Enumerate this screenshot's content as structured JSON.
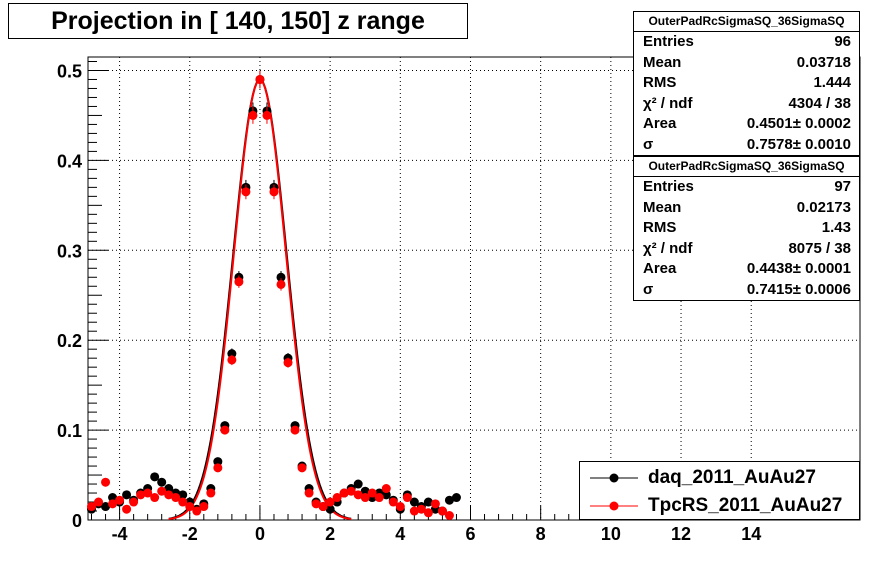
{
  "title": "Projection in [ 140, 150] z range",
  "stats_boxes": [
    {
      "header": "OuterPadRcSigmaSQ_36SigmaSQ",
      "rows": [
        {
          "label": "Entries",
          "value": "96"
        },
        {
          "label": "Mean",
          "value": "0.03718"
        },
        {
          "label": "RMS",
          "value": "1.444"
        },
        {
          "label": "χ² / ndf",
          "value": "4304 / 38"
        },
        {
          "label": "Area",
          "value": "0.4501± 0.0002"
        },
        {
          "label": "σ",
          "value": "0.7578± 0.0010"
        }
      ]
    },
    {
      "header": "OuterPadRcSigmaSQ_36SigmaSQ",
      "rows": [
        {
          "label": "Entries",
          "value": "97"
        },
        {
          "label": "Mean",
          "value": "0.02173"
        },
        {
          "label": "RMS",
          "value": "1.43"
        },
        {
          "label": "χ² / ndf",
          "value": "8075 / 38"
        },
        {
          "label": "Area",
          "value": "0.4438± 0.0001"
        },
        {
          "label": "σ",
          "value": "0.7415± 0.0006"
        }
      ]
    }
  ],
  "legend": [
    {
      "label": "daq_2011_AuAu27",
      "color": "#000000"
    },
    {
      "label": "TpcRS_2011_AuAu27",
      "color": "#ff0000"
    }
  ],
  "chart_data": {
    "type": "scatter",
    "xlim": [
      -4.9,
      17.1
    ],
    "ylim": [
      0,
      0.515
    ],
    "x_ticks": [
      -4,
      -2,
      0,
      2,
      4,
      6,
      8,
      10,
      12,
      14
    ],
    "y_ticks": [
      0,
      0.1,
      0.2,
      0.3,
      0.4,
      0.5
    ],
    "grid": true,
    "legend_position": "bottom-right",
    "series": [
      {
        "name": "daq_2011_AuAu27",
        "color": "#000000",
        "fit_sigma": 0.7578,
        "points": [
          [
            -4.8,
            0.012
          ],
          [
            -4.6,
            0.018
          ],
          [
            -4.4,
            0.015
          ],
          [
            -4.2,
            0.025
          ],
          [
            -4.0,
            0.02
          ],
          [
            -3.8,
            0.028
          ],
          [
            -3.6,
            0.022
          ],
          [
            -3.4,
            0.03
          ],
          [
            -3.2,
            0.035
          ],
          [
            -3.0,
            0.048
          ],
          [
            -2.8,
            0.042
          ],
          [
            -2.6,
            0.035
          ],
          [
            -2.4,
            0.03
          ],
          [
            -2.2,
            0.028
          ],
          [
            -2.0,
            0.02
          ],
          [
            -1.8,
            0.012
          ],
          [
            -1.6,
            0.018
          ],
          [
            -1.4,
            0.035
          ],
          [
            -1.2,
            0.065
          ],
          [
            -1.0,
            0.105
          ],
          [
            -0.8,
            0.185
          ],
          [
            -0.6,
            0.27
          ],
          [
            -0.4,
            0.37
          ],
          [
            -0.2,
            0.455
          ],
          [
            0.0,
            0.49
          ],
          [
            0.2,
            0.455
          ],
          [
            0.4,
            0.37
          ],
          [
            0.6,
            0.27
          ],
          [
            0.8,
            0.18
          ],
          [
            1.0,
            0.105
          ],
          [
            1.2,
            0.06
          ],
          [
            1.4,
            0.035
          ],
          [
            1.6,
            0.02
          ],
          [
            1.8,
            0.015
          ],
          [
            2.0,
            0.012
          ],
          [
            2.2,
            0.02
          ],
          [
            2.4,
            0.03
          ],
          [
            2.6,
            0.035
          ],
          [
            2.8,
            0.04
          ],
          [
            3.0,
            0.032
          ],
          [
            3.2,
            0.025
          ],
          [
            3.4,
            0.03
          ],
          [
            3.6,
            0.028
          ],
          [
            3.8,
            0.022
          ],
          [
            4.0,
            0.012
          ],
          [
            4.2,
            0.028
          ],
          [
            4.4,
            0.02
          ],
          [
            4.6,
            0.015
          ],
          [
            4.8,
            0.02
          ],
          [
            5.0,
            0.012
          ],
          [
            5.2,
            0.01
          ],
          [
            5.4,
            0.022
          ],
          [
            5.6,
            0.025
          ]
        ]
      },
      {
        "name": "TpcRS_2011_AuAu27",
        "color": "#ff0000",
        "fit_sigma": 0.7415,
        "points": [
          [
            -4.8,
            0.015
          ],
          [
            -4.6,
            0.02
          ],
          [
            -4.4,
            0.042
          ],
          [
            -4.2,
            0.018
          ],
          [
            -4.0,
            0.022
          ],
          [
            -3.8,
            0.012
          ],
          [
            -3.6,
            0.02
          ],
          [
            -3.4,
            0.028
          ],
          [
            -3.2,
            0.03
          ],
          [
            -3.0,
            0.025
          ],
          [
            -2.8,
            0.032
          ],
          [
            -2.6,
            0.028
          ],
          [
            -2.4,
            0.025
          ],
          [
            -2.2,
            0.02
          ],
          [
            -2.0,
            0.015
          ],
          [
            -1.8,
            0.01
          ],
          [
            -1.6,
            0.015
          ],
          [
            -1.4,
            0.03
          ],
          [
            -1.2,
            0.058
          ],
          [
            -1.0,
            0.1
          ],
          [
            -0.8,
            0.178
          ],
          [
            -0.6,
            0.265
          ],
          [
            -0.4,
            0.365
          ],
          [
            -0.2,
            0.45
          ],
          [
            0.0,
            0.49
          ],
          [
            0.2,
            0.45
          ],
          [
            0.4,
            0.365
          ],
          [
            0.6,
            0.262
          ],
          [
            0.8,
            0.175
          ],
          [
            1.0,
            0.1
          ],
          [
            1.2,
            0.058
          ],
          [
            1.4,
            0.03
          ],
          [
            1.6,
            0.018
          ],
          [
            1.8,
            0.015
          ],
          [
            2.0,
            0.02
          ],
          [
            2.2,
            0.025
          ],
          [
            2.4,
            0.03
          ],
          [
            2.6,
            0.032
          ],
          [
            2.8,
            0.028
          ],
          [
            3.0,
            0.025
          ],
          [
            3.2,
            0.03
          ],
          [
            3.4,
            0.025
          ],
          [
            3.6,
            0.035
          ],
          [
            3.8,
            0.02
          ],
          [
            4.0,
            0.015
          ],
          [
            4.2,
            0.025
          ],
          [
            4.4,
            0.01
          ],
          [
            4.6,
            0.012
          ],
          [
            4.8,
            0.008
          ],
          [
            5.0,
            0.018
          ],
          [
            5.2,
            0.01
          ],
          [
            5.4,
            0.005
          ]
        ]
      }
    ]
  }
}
